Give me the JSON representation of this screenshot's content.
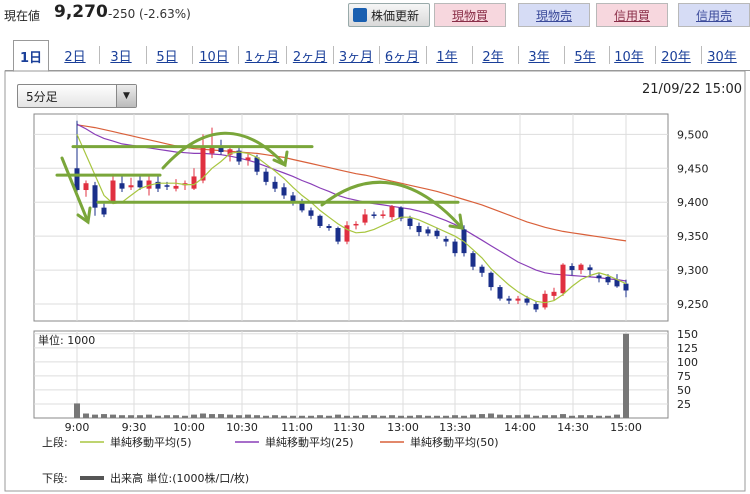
{
  "header": {
    "price_label": "現在値",
    "price_value": "9,270",
    "price_change": "-250 (-2.63%)",
    "update_button": "株価更新",
    "trade_buttons": [
      "現物買",
      "現物売",
      "信用買",
      "信用売"
    ]
  },
  "tabs": [
    "1日",
    "2日",
    "3日",
    "5日",
    "10日",
    "1ヶ月",
    "2ヶ月",
    "3ヶ月",
    "6ヶ月",
    "1年",
    "2年",
    "3年",
    "5年",
    "10年",
    "20年",
    "30年"
  ],
  "active_tab": "1日",
  "interval_select": "5分足",
  "datetime": "21/09/22 15:00",
  "chart_data": {
    "type": "candlestick",
    "x_ticks": [
      "9:00",
      "9:30",
      "10:00",
      "10:30",
      "11:00",
      "11:30",
      "13:00",
      "13:30",
      "14:00",
      "14:30",
      "15:00"
    ],
    "price_ticks": [
      9500,
      9450,
      9400,
      9350,
      9300,
      9250
    ],
    "price_tick_labels": [
      "9,500",
      "9,450",
      "9,400",
      "9,350",
      "9,300",
      "9,250"
    ],
    "ylim": [
      9225,
      9530
    ],
    "volume_unit_label": "単位: 1000",
    "volume_ticks": [
      150,
      125,
      100,
      75,
      50,
      25
    ],
    "volume_ylim": [
      0,
      155
    ],
    "candles": [
      {
        "o": 9450,
        "h": 9520,
        "l": 9415,
        "c": 9418
      },
      {
        "o": 9418,
        "h": 9432,
        "l": 9408,
        "c": 9428
      },
      {
        "o": 9425,
        "h": 9430,
        "l": 9380,
        "c": 9392
      },
      {
        "o": 9392,
        "h": 9398,
        "l": 9378,
        "c": 9382
      },
      {
        "o": 9400,
        "h": 9442,
        "l": 9398,
        "c": 9432
      },
      {
        "o": 9428,
        "h": 9440,
        "l": 9415,
        "c": 9420
      },
      {
        "o": 9422,
        "h": 9436,
        "l": 9418,
        "c": 9425
      },
      {
        "o": 9432,
        "h": 9438,
        "l": 9418,
        "c": 9422
      },
      {
        "o": 9420,
        "h": 9440,
        "l": 9410,
        "c": 9432
      },
      {
        "o": 9430,
        "h": 9438,
        "l": 9415,
        "c": 9420
      },
      {
        "o": 9425,
        "h": 9430,
        "l": 9418,
        "c": 9424
      },
      {
        "o": 9420,
        "h": 9434,
        "l": 9416,
        "c": 9424
      },
      {
        "o": 9425,
        "h": 9432,
        "l": 9418,
        "c": 9428
      },
      {
        "o": 9420,
        "h": 9450,
        "l": 9418,
        "c": 9438
      },
      {
        "o": 9432,
        "h": 9500,
        "l": 9428,
        "c": 9480
      },
      {
        "o": 9472,
        "h": 9510,
        "l": 9465,
        "c": 9480
      },
      {
        "o": 9482,
        "h": 9492,
        "l": 9470,
        "c": 9474
      },
      {
        "o": 9470,
        "h": 9480,
        "l": 9460,
        "c": 9478
      },
      {
        "o": 9476,
        "h": 9480,
        "l": 9455,
        "c": 9460
      },
      {
        "o": 9462,
        "h": 9472,
        "l": 9454,
        "c": 9466
      },
      {
        "o": 9466,
        "h": 9470,
        "l": 9440,
        "c": 9445
      },
      {
        "o": 9445,
        "h": 9450,
        "l": 9425,
        "c": 9430
      },
      {
        "o": 9430,
        "h": 9438,
        "l": 9415,
        "c": 9420
      },
      {
        "o": 9422,
        "h": 9428,
        "l": 9405,
        "c": 9410
      },
      {
        "o": 9410,
        "h": 9415,
        "l": 9395,
        "c": 9400
      },
      {
        "o": 9400,
        "h": 9405,
        "l": 9385,
        "c": 9388
      },
      {
        "o": 9388,
        "h": 9392,
        "l": 9375,
        "c": 9380
      },
      {
        "o": 9380,
        "h": 9382,
        "l": 9362,
        "c": 9365
      },
      {
        "o": 9365,
        "h": 9368,
        "l": 9358,
        "c": 9362
      },
      {
        "o": 9362,
        "h": 9364,
        "l": 9338,
        "c": 9342
      },
      {
        "o": 9342,
        "h": 9372,
        "l": 9338,
        "c": 9366
      },
      {
        "o": 9366,
        "h": 9372,
        "l": 9360,
        "c": 9368
      },
      {
        "o": 9370,
        "h": 9390,
        "l": 9366,
        "c": 9382
      },
      {
        "o": 9382,
        "h": 9386,
        "l": 9376,
        "c": 9380
      },
      {
        "o": 9380,
        "h": 9388,
        "l": 9376,
        "c": 9382
      },
      {
        "o": 9378,
        "h": 9396,
        "l": 9374,
        "c": 9394
      },
      {
        "o": 9392,
        "h": 9394,
        "l": 9372,
        "c": 9376
      },
      {
        "o": 9376,
        "h": 9380,
        "l": 9360,
        "c": 9365
      },
      {
        "o": 9365,
        "h": 9370,
        "l": 9350,
        "c": 9356
      },
      {
        "o": 9360,
        "h": 9364,
        "l": 9350,
        "c": 9354
      },
      {
        "o": 9358,
        "h": 9362,
        "l": 9346,
        "c": 9350
      },
      {
        "o": 9346,
        "h": 9350,
        "l": 9335,
        "c": 9342
      },
      {
        "o": 9342,
        "h": 9346,
        "l": 9320,
        "c": 9325
      },
      {
        "o": 9360,
        "h": 9366,
        "l": 9320,
        "c": 9325
      },
      {
        "o": 9325,
        "h": 9328,
        "l": 9300,
        "c": 9305
      },
      {
        "o": 9305,
        "h": 9308,
        "l": 9290,
        "c": 9296
      },
      {
        "o": 9296,
        "h": 9298,
        "l": 9270,
        "c": 9275
      },
      {
        "o": 9275,
        "h": 9278,
        "l": 9255,
        "c": 9258
      },
      {
        "o": 9258,
        "h": 9262,
        "l": 9250,
        "c": 9255
      },
      {
        "o": 9255,
        "h": 9262,
        "l": 9250,
        "c": 9258
      },
      {
        "o": 9258,
        "h": 9262,
        "l": 9248,
        "c": 9252
      },
      {
        "o": 9250,
        "h": 9254,
        "l": 9238,
        "c": 9242
      },
      {
        "o": 9245,
        "h": 9270,
        "l": 9242,
        "c": 9265
      },
      {
        "o": 9262,
        "h": 9274,
        "l": 9256,
        "c": 9268
      },
      {
        "o": 9266,
        "h": 9310,
        "l": 9262,
        "c": 9308
      },
      {
        "o": 9306,
        "h": 9310,
        "l": 9292,
        "c": 9300
      },
      {
        "o": 9300,
        "h": 9310,
        "l": 9294,
        "c": 9308
      },
      {
        "o": 9304,
        "h": 9308,
        "l": 9290,
        "c": 9300
      },
      {
        "o": 9292,
        "h": 9296,
        "l": 9282,
        "c": 9288
      },
      {
        "o": 9290,
        "h": 9294,
        "l": 9278,
        "c": 9282
      },
      {
        "o": 9286,
        "h": 9294,
        "l": 9274,
        "c": 9276
      },
      {
        "o": 9280,
        "h": 9286,
        "l": 9260,
        "c": 9270
      }
    ],
    "volume": [
      26,
      8,
      6,
      7,
      6,
      5,
      5,
      5,
      6,
      4,
      5,
      5,
      4,
      6,
      8,
      7,
      7,
      6,
      5,
      6,
      5,
      4,
      5,
      4,
      4,
      4,
      4,
      5,
      4,
      6,
      4,
      4,
      5,
      5,
      4,
      5,
      4,
      4,
      5,
      4,
      4,
      4,
      5,
      4,
      6,
      7,
      8,
      6,
      5,
      5,
      6,
      4,
      5,
      5,
      7,
      4,
      5,
      5,
      4,
      4,
      6,
      150
    ],
    "ma5": [
      9500,
      9470,
      9440,
      9410,
      9398,
      9400,
      9410,
      9420,
      9425,
      9428,
      9428,
      9428,
      9426,
      9426,
      9436,
      9450,
      9460,
      9472,
      9474,
      9472,
      9466,
      9456,
      9446,
      9435,
      9422,
      9410,
      9400,
      9388,
      9378,
      9368,
      9360,
      9355,
      9356,
      9360,
      9366,
      9372,
      9378,
      9378,
      9374,
      9368,
      9362,
      9356,
      9350,
      9342,
      9330,
      9318,
      9302,
      9290,
      9278,
      9268,
      9260,
      9254,
      9252,
      9255,
      9264,
      9276,
      9286,
      9292,
      9296,
      9292,
      9286,
      9280
    ],
    "ma25": [
      9515,
      9508,
      9500,
      9494,
      9490,
      9486,
      9484,
      9482,
      9480,
      9478,
      9476,
      9474,
      9473,
      9472,
      9472,
      9471,
      9470,
      9468,
      9465,
      9462,
      9458,
      9453,
      9448,
      9443,
      9438,
      9432,
      9427,
      9421,
      9416,
      9410,
      9406,
      9403,
      9400,
      9398,
      9396,
      9394,
      9392,
      9390,
      9387,
      9383,
      9378,
      9373,
      9367,
      9360,
      9352,
      9344,
      9336,
      9328,
      9320,
      9312,
      9306,
      9300,
      9296,
      9294,
      9293,
      9292,
      9291,
      9290,
      9289,
      9287,
      9286,
      9284
    ],
    "ma50": [
      9514,
      9512,
      9510,
      9507,
      9504,
      9501,
      9498,
      9495,
      9492,
      9489,
      9486,
      9483,
      9481,
      9479,
      9478,
      9477,
      9476,
      9475,
      9474,
      9473,
      9472,
      9470,
      9468,
      9466,
      9463,
      9460,
      9457,
      9454,
      9451,
      9448,
      9445,
      9442,
      9440,
      9437,
      9434,
      9431,
      9428,
      9425,
      9422,
      9419,
      9416,
      9412,
      9408,
      9404,
      9400,
      9396,
      9391,
      9386,
      9381,
      9376,
      9371,
      9367,
      9363,
      9360,
      9357,
      9355,
      9353,
      9351,
      9349,
      9347,
      9345,
      9343
    ],
    "legend": {
      "upper_label": "上段:",
      "lower_label": "下段:",
      "series": [
        "単純移動平均(5)",
        "単純移動平均(25)",
        "単純移動平均(50)"
      ],
      "series_colors": [
        "#a8c640",
        "#8a3fb8",
        "#d9603a"
      ],
      "volume_label": "出来高 単位:(1000株/口/枚)"
    },
    "colors": {
      "up": "#e03040",
      "down": "#1a2f8a",
      "volume": "#777777",
      "annotation": "#7aa63a"
    }
  }
}
